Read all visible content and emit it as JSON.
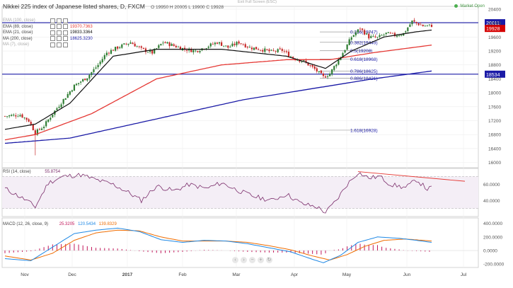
{
  "header": {
    "title": "Nikkei 225 index of Japanese listed shares, D, FXCM",
    "ohlc": "O 19950  H 20005  L 19900  C 19928",
    "status": "Market Open",
    "fullscreen": "Exit Full Screen (ESC)"
  },
  "legend": [
    {
      "label": "EMA (89, close)",
      "value": "19370.7363",
      "color": "#e53935"
    },
    {
      "label": "EMA (21, close)",
      "value": "19833.3364",
      "color": "#111111"
    },
    {
      "label": "MA (200, close)",
      "value": "18625.3230",
      "color": "#1a1aa6"
    }
  ],
  "legend_dim": [
    "EMA (100, close)",
    "MA (7), close)"
  ],
  "navbar_icons": [
    "arrow-left-icon",
    "arrow-right-icon",
    "zoom-out-icon",
    "zoom-in-icon",
    "reset-icon"
  ],
  "colors": {
    "up": "#2e7d32",
    "down": "#c62828",
    "ema21": "#111111",
    "ema89": "#e53935",
    "ma200": "#1a1aa6",
    "rsi": "#7b2d6b",
    "macd": "#1e88e5",
    "signal": "#ef6c00",
    "hist": "#c2185b",
    "price_tag": "#d50000",
    "level_tag": "#1a1aa6"
  },
  "chart_data": [
    {
      "type": "candlestick",
      "title": "Nikkei 225 index of Japanese listed shares, D, FXCM",
      "x_labels": [
        "Nov",
        "Dec",
        "2017",
        "Feb",
        "Mar",
        "Apr",
        "May",
        "Jun",
        "Jul"
      ],
      "y_ticks": [
        16000,
        16400,
        16800,
        17200,
        17600,
        18000,
        18400,
        18800,
        19200,
        19600,
        20000,
        20400
      ],
      "ylim": [
        15850,
        20480
      ],
      "last_price": "19928",
      "horizontal_levels": [
        {
          "label": "20011",
          "value": 20011
        },
        {
          "label": "18534",
          "value": 18534
        }
      ],
      "fibonacci": [
        {
          "label": "0.236(19747)",
          "value": 19747
        },
        {
          "label": "0.382(19449)",
          "value": 19449
        },
        {
          "label": "0.5(19208)",
          "value": 19208
        },
        {
          "label": "0.618(18968)",
          "value": 18968
        },
        {
          "label": "0.786(18625)",
          "value": 18625
        },
        {
          "label": "0.886(18421)",
          "value": 18421
        },
        {
          "label": "1.618(16928)",
          "value": 16928
        }
      ],
      "price_anchors": [
        [
          0,
          17330
        ],
        [
          7,
          17370
        ],
        [
          11,
          17200
        ],
        [
          14,
          16850
        ],
        [
          18,
          17050
        ],
        [
          22,
          17400
        ],
        [
          27,
          17800
        ],
        [
          32,
          18200
        ],
        [
          38,
          18450
        ],
        [
          43,
          18800
        ],
        [
          47,
          19150
        ],
        [
          52,
          19300
        ],
        [
          58,
          19450
        ],
        [
          63,
          19250
        ],
        [
          68,
          19150
        ],
        [
          73,
          19450
        ],
        [
          78,
          19350
        ],
        [
          83,
          19250
        ],
        [
          88,
          19200
        ],
        [
          93,
          19320
        ],
        [
          98,
          19450
        ],
        [
          103,
          19300
        ],
        [
          108,
          19450
        ],
        [
          113,
          19300
        ],
        [
          118,
          19250
        ],
        [
          123,
          19180
        ],
        [
          128,
          19220
        ],
        [
          133,
          19000
        ],
        [
          138,
          18900
        ],
        [
          143,
          18680
        ],
        [
          147,
          18450
        ],
        [
          150,
          18550
        ],
        [
          153,
          18850
        ],
        [
          157,
          19250
        ],
        [
          160,
          19600
        ],
        [
          164,
          19850
        ],
        [
          168,
          19600
        ],
        [
          172,
          19580
        ],
        [
          176,
          19700
        ],
        [
          180,
          19650
        ],
        [
          184,
          19700
        ],
        [
          188,
          20050
        ],
        [
          193,
          19920
        ],
        [
          197,
          19928
        ]
      ],
      "ema21_anchors": [
        [
          0,
          16950
        ],
        [
          14,
          17100
        ],
        [
          30,
          17700
        ],
        [
          50,
          19050
        ],
        [
          70,
          19250
        ],
        [
          100,
          19250
        ],
        [
          130,
          19050
        ],
        [
          148,
          18700
        ],
        [
          160,
          19200
        ],
        [
          175,
          19600
        ],
        [
          190,
          19750
        ],
        [
          197,
          19800
        ]
      ],
      "ema89_anchors": [
        [
          0,
          16650
        ],
        [
          14,
          16800
        ],
        [
          40,
          17400
        ],
        [
          70,
          18400
        ],
        [
          100,
          18800
        ],
        [
          130,
          18950
        ],
        [
          150,
          18950
        ],
        [
          170,
          19150
        ],
        [
          197,
          19370
        ]
      ],
      "ma200_anchors": [
        [
          0,
          16550
        ],
        [
          30,
          16700
        ],
        [
          70,
          17250
        ],
        [
          110,
          17800
        ],
        [
          150,
          18200
        ],
        [
          170,
          18400
        ],
        [
          197,
          18625
        ]
      ]
    },
    {
      "type": "line",
      "title": "RSI (14, close)",
      "value": "55.8754",
      "ylim": [
        20,
        80
      ],
      "y_ticks": [
        "40.0000",
        "60.0000"
      ],
      "series": [
        {
          "name": "RSI (14, close)",
          "anchors": [
            [
              0,
              55
            ],
            [
              10,
              40
            ],
            [
              14,
              32
            ],
            [
              20,
              62
            ],
            [
              27,
              70
            ],
            [
              35,
              72
            ],
            [
              43,
              65
            ],
            [
              50,
              60
            ],
            [
              57,
              50
            ],
            [
              63,
              40
            ],
            [
              70,
              58
            ],
            [
              78,
              52
            ],
            [
              85,
              60
            ],
            [
              93,
              55
            ],
            [
              100,
              62
            ],
            [
              108,
              52
            ],
            [
              115,
              45
            ],
            [
              123,
              40
            ],
            [
              130,
              48
            ],
            [
              137,
              36
            ],
            [
              144,
              32
            ],
            [
              148,
              25
            ],
            [
              153,
              40
            ],
            [
              158,
              60
            ],
            [
              163,
              75
            ],
            [
              168,
              68
            ],
            [
              173,
              70
            ],
            [
              178,
              60
            ],
            [
              185,
              56
            ],
            [
              190,
              66
            ],
            [
              195,
              54
            ],
            [
              197,
              55.9
            ]
          ]
        }
      ]
    },
    {
      "type": "line",
      "title": "MACD (12, 26, close, 9)",
      "values": [
        "25.3205",
        "120.5434",
        "139.8329"
      ],
      "ylim": [
        -250,
        480
      ],
      "y_ticks": [
        "400.0000",
        "200.0000",
        "0.0000",
        "-200.0000"
      ],
      "series": [
        {
          "name": "MACD",
          "anchors": [
            [
              0,
              -120
            ],
            [
              12,
              -150
            ],
            [
              22,
              50
            ],
            [
              32,
              250
            ],
            [
              42,
              300
            ],
            [
              52,
              330
            ],
            [
              62,
              280
            ],
            [
              72,
              160
            ],
            [
              82,
              120
            ],
            [
              92,
              150
            ],
            [
              102,
              140
            ],
            [
              112,
              100
            ],
            [
              122,
              40
            ],
            [
              132,
              -20
            ],
            [
              142,
              -130
            ],
            [
              147,
              -180
            ],
            [
              155,
              -70
            ],
            [
              163,
              120
            ],
            [
              172,
              200
            ],
            [
              182,
              180
            ],
            [
              190,
              150
            ],
            [
              197,
              120
            ]
          ]
        },
        {
          "name": "Signal",
          "anchors": [
            [
              0,
              -80
            ],
            [
              12,
              -140
            ],
            [
              22,
              -40
            ],
            [
              32,
              150
            ],
            [
              42,
              260
            ],
            [
              52,
              300
            ],
            [
              62,
              290
            ],
            [
              72,
              200
            ],
            [
              82,
              140
            ],
            [
              92,
              140
            ],
            [
              102,
              140
            ],
            [
              112,
              120
            ],
            [
              122,
              70
            ],
            [
              132,
              10
            ],
            [
              142,
              -80
            ],
            [
              150,
              -140
            ],
            [
              158,
              -60
            ],
            [
              166,
              60
            ],
            [
              175,
              150
            ],
            [
              185,
              170
            ],
            [
              197,
              140
            ]
          ]
        }
      ]
    }
  ]
}
